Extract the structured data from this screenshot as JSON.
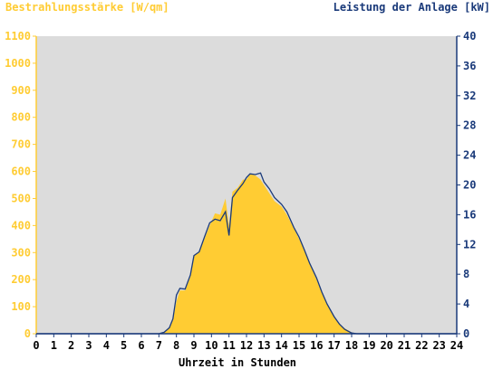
{
  "chart_data": {
    "type": "area",
    "ylabel_left": "Bestrahlungsstärke [W/qm]",
    "ylabel_right": "Leistung der Anlage [kW]",
    "xlabel": "Uhrzeit in Stunden",
    "xlim": [
      0,
      24
    ],
    "ylim_left": [
      0,
      1100
    ],
    "ylim_right": [
      0,
      40
    ],
    "x_ticks": [
      "0",
      "1",
      "2",
      "3",
      "4",
      "5",
      "6",
      "7",
      "8",
      "9",
      "10",
      "11",
      "12",
      "13",
      "14",
      "15",
      "16",
      "17",
      "18",
      "19",
      "20",
      "21",
      "22",
      "23",
      "24"
    ],
    "y_ticks_left": [
      "0",
      "100",
      "200",
      "300",
      "400",
      "500",
      "600",
      "700",
      "800",
      "900",
      "1000",
      "1100"
    ],
    "y_ticks_right": [
      "0",
      "4",
      "8",
      "12",
      "16",
      "20",
      "24",
      "28",
      "32",
      "36",
      "40"
    ],
    "grid": false,
    "colors": {
      "irradiance_fill": "#ffcc33",
      "power_line": "#1a3a7a",
      "plot_background": "#dcdcdc",
      "left_axis": "#ffcc33",
      "right_axis": "#1a3a7a"
    },
    "series": [
      {
        "axis": "left",
        "style": "filled-area",
        "x": [
          0,
          7.0,
          7.3,
          7.6,
          7.8,
          8.0,
          8.2,
          8.5,
          8.8,
          9.0,
          9.3,
          9.6,
          9.9,
          10.2,
          10.5,
          10.8,
          11.0,
          11.2,
          11.5,
          11.8,
          12.0,
          12.2,
          12.5,
          12.8,
          13.0,
          13.3,
          13.6,
          14.0,
          14.3,
          14.7,
          15.0,
          15.3,
          15.6,
          16.0,
          16.3,
          16.6,
          17.0,
          17.3,
          17.6,
          18.0,
          18.3,
          18.5,
          24
        ],
        "y": [
          0,
          0,
          5,
          20,
          50,
          120,
          160,
          160,
          210,
          290,
          300,
          350,
          400,
          445,
          440,
          500,
          400,
          525,
          540,
          570,
          570,
          590,
          585,
          570,
          550,
          520,
          490,
          470,
          440,
          390,
          350,
          310,
          260,
          200,
          150,
          110,
          60,
          35,
          20,
          5,
          0,
          0,
          0
        ]
      },
      {
        "axis": "right",
        "style": "line",
        "x": [
          0,
          7.0,
          7.3,
          7.6,
          7.8,
          8.0,
          8.2,
          8.5,
          8.8,
          9.0,
          9.3,
          9.6,
          9.9,
          10.2,
          10.5,
          10.8,
          11.0,
          11.2,
          11.5,
          11.8,
          12.0,
          12.2,
          12.5,
          12.8,
          13.0,
          13.3,
          13.6,
          14.0,
          14.3,
          14.7,
          15.0,
          15.3,
          15.6,
          16.0,
          16.3,
          16.6,
          17.0,
          17.3,
          17.6,
          18.0,
          18.3,
          18.5,
          24
        ],
        "y": [
          0,
          0,
          0.2,
          0.8,
          2.0,
          5.2,
          6.1,
          6.0,
          7.9,
          10.5,
          11.0,
          13.0,
          14.9,
          15.4,
          15.2,
          16.4,
          13.2,
          18.3,
          19.3,
          20.2,
          21.0,
          21.5,
          21.4,
          21.6,
          20.4,
          19.5,
          18.3,
          17.4,
          16.4,
          14.3,
          13.0,
          11.3,
          9.5,
          7.5,
          5.6,
          4.0,
          2.3,
          1.3,
          0.6,
          0.1,
          0,
          0,
          0
        ]
      }
    ]
  }
}
